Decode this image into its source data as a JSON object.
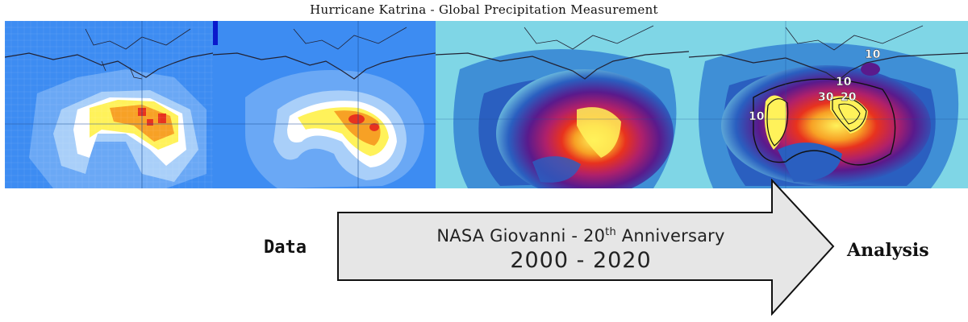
{
  "title": "Hurricane Katrina - Global Precipitation Measurement",
  "left_label": "Data",
  "right_label": "Analysis",
  "arrow": {
    "line1_prefix": "NASA Giovanni - 20",
    "line1_superscript": "th",
    "line1_suffix": " Anniversary",
    "years": "2000 - 2020"
  },
  "contour_labels": [
    "10",
    "10",
    "30",
    "20",
    "10"
  ],
  "colors": {
    "ocean_blue": "#3d8cf2",
    "cyan_bg": "#7fd6e6",
    "arrow_fill": "#e6e6e6",
    "rain_red": "#e8321e",
    "rain_yellow": "#fff25a",
    "rain_purple": "#5a1a8c"
  }
}
